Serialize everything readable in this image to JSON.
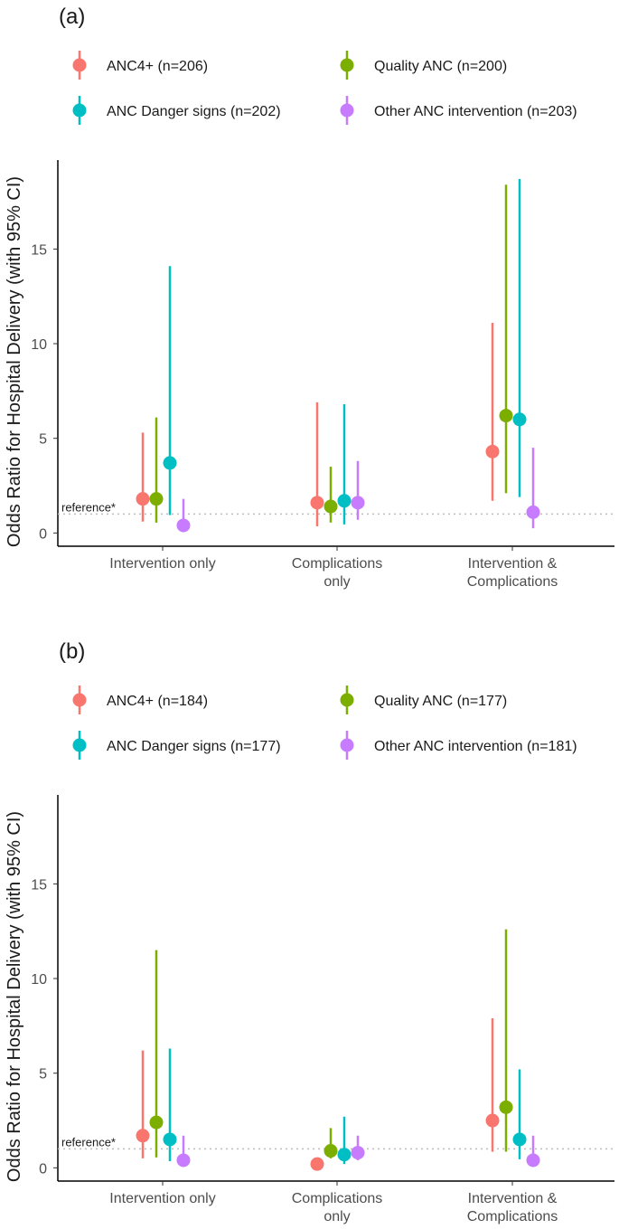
{
  "chart_data": [
    {
      "panel": "(a)",
      "type": "scatter",
      "categories": [
        "Intervention only",
        "Complications only",
        "Intervention & Complications"
      ],
      "ylabel": "Odds Ratio for Hospital Delivery (with 95% CI)",
      "ylim": [
        -0.7,
        19.7
      ],
      "yticks": [
        "0",
        "5",
        "10",
        "15"
      ],
      "reference_value": 1,
      "reference_label": "reference*",
      "grid": false,
      "legend_position": "top",
      "series": [
        {
          "name": "ANC4+ (n=206)",
          "color": "#F8766D",
          "points": [
            {
              "or": 1.8,
              "lo": 0.6,
              "hi": 5.3
            },
            {
              "or": 1.6,
              "lo": 0.35,
              "hi": 6.9
            },
            {
              "or": 4.3,
              "lo": 1.7,
              "hi": 11.1
            }
          ]
        },
        {
          "name": "Quality ANC (n=200)",
          "color": "#7CAE00",
          "points": [
            {
              "or": 1.8,
              "lo": 0.55,
              "hi": 6.1
            },
            {
              "or": 1.4,
              "lo": 0.55,
              "hi": 3.5
            },
            {
              "or": 6.2,
              "lo": 2.1,
              "hi": 18.4
            }
          ]
        },
        {
          "name": "ANC Danger signs (n=202)",
          "color": "#00BFC4",
          "points": [
            {
              "or": 3.7,
              "lo": 0.95,
              "hi": 14.1
            },
            {
              "or": 1.7,
              "lo": 0.45,
              "hi": 6.8
            },
            {
              "or": 6.0,
              "lo": 1.9,
              "hi": 18.7
            }
          ]
        },
        {
          "name": "Other ANC intervention (n=203)",
          "color": "#C77CFF",
          "points": [
            {
              "or": 0.4,
              "lo": 0.05,
              "hi": 1.8
            },
            {
              "or": 1.6,
              "lo": 0.7,
              "hi": 3.8
            },
            {
              "or": 1.1,
              "lo": 0.25,
              "hi": 4.5
            }
          ]
        }
      ]
    },
    {
      "panel": "(b)",
      "type": "scatter",
      "categories": [
        "Intervention only",
        "Complications only",
        "Intervention & Complications"
      ],
      "ylabel": "Odds Ratio for Hospital Delivery (with 95% CI)",
      "ylim": [
        -0.7,
        19.7
      ],
      "yticks": [
        "0",
        "5",
        "10",
        "15"
      ],
      "reference_value": 1,
      "reference_label": "reference*",
      "grid": false,
      "legend_position": "top",
      "series": [
        {
          "name": "ANC4+ (n=184)",
          "color": "#F8766D",
          "points": [
            {
              "or": 1.7,
              "lo": 0.5,
              "hi": 6.2
            },
            {
              "or": 0.2,
              "lo": 0.05,
              "hi": 0.5
            },
            {
              "or": 2.5,
              "lo": 0.85,
              "hi": 7.9
            }
          ]
        },
        {
          "name": "Quality ANC (n=177)",
          "color": "#7CAE00",
          "points": [
            {
              "or": 2.4,
              "lo": 0.55,
              "hi": 11.5
            },
            {
              "or": 0.9,
              "lo": 0.5,
              "hi": 2.1
            },
            {
              "or": 3.2,
              "lo": 0.85,
              "hi": 12.6
            }
          ]
        },
        {
          "name": "ANC Danger signs (n=177)",
          "color": "#00BFC4",
          "points": [
            {
              "or": 1.5,
              "lo": 0.35,
              "hi": 6.3
            },
            {
              "or": 0.7,
              "lo": 0.2,
              "hi": 2.7
            },
            {
              "or": 1.5,
              "lo": 0.45,
              "hi": 5.2
            }
          ]
        },
        {
          "name": "Other ANC intervention (n=181)",
          "color": "#C77CFF",
          "points": [
            {
              "or": 0.4,
              "lo": 0.05,
              "hi": 1.7
            },
            {
              "or": 0.8,
              "lo": 0.4,
              "hi": 1.7
            },
            {
              "or": 0.4,
              "lo": 0.05,
              "hi": 1.7
            }
          ]
        }
      ]
    }
  ]
}
